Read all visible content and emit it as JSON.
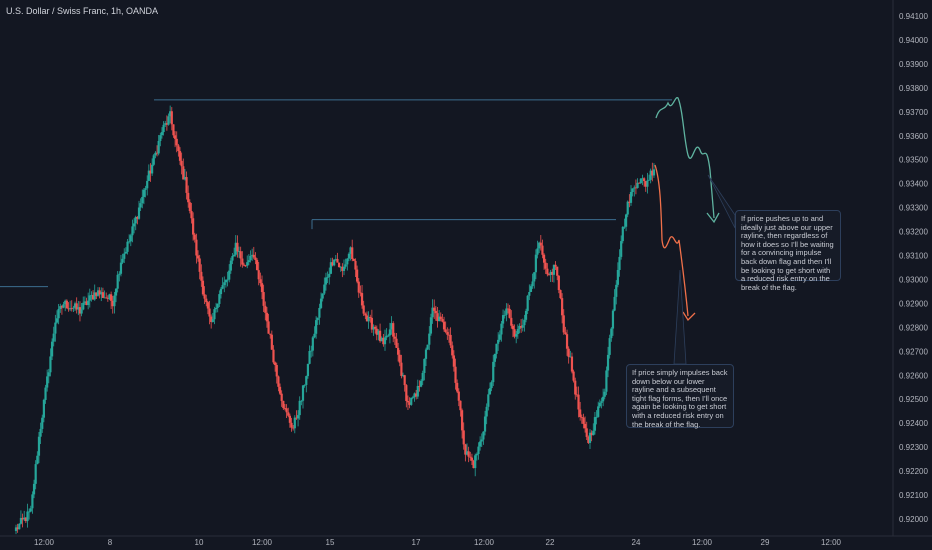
{
  "header": {
    "symbol_title": "U.S. Dollar / Swiss Franc, 1h, OANDA"
  },
  "annotations": {
    "note_upper": "If price pushes up to and ideally just above our upper rayline, then regardless of how it does so I'll be waiting for a convincing impulse back down flag and then I'll be looking to get short with a reduced risk entry on the break of the flag.",
    "note_lower": "If price simply impulses back down below our lower rayline and a subsequent tight flag forms, then I'll once again be looking to get short with a reduced risk entry on the break of the flag."
  },
  "colors": {
    "background": "#131722",
    "bull": "#26a69a",
    "bear": "#ef5350",
    "rayline": "#3c6e8f",
    "scenario_up": "#5fb3a0",
    "scenario_down": "#f0704a",
    "axis_text": "#b2b5be"
  },
  "chart_data": {
    "type": "candlestick",
    "instrument": "USDCHF",
    "timeframe": "1h",
    "ylim": [
      0.9195,
      0.9415
    ],
    "y_ticks": [
      "0.94100",
      "0.94000",
      "0.93900",
      "0.93800",
      "0.93700",
      "0.93600",
      "0.93500",
      "0.93400",
      "0.93300",
      "0.93200",
      "0.93100",
      "0.93000",
      "0.92900",
      "0.92800",
      "0.92700",
      "0.92600",
      "0.92500",
      "0.92400",
      "0.92300",
      "0.92200",
      "0.92100",
      "0.92000"
    ],
    "x_ticks": [
      "12:00",
      "8",
      "10",
      "12:00",
      "15",
      "17",
      "12:00",
      "22",
      "24",
      "12:00",
      "29",
      "12:00"
    ],
    "price_path": [
      [
        0,
        0.9195
      ],
      [
        2,
        0.9203
      ],
      [
        3,
        0.9234
      ],
      [
        4,
        0.9258
      ],
      [
        5,
        0.9283
      ],
      [
        6,
        0.929
      ],
      [
        8,
        0.9287
      ],
      [
        10,
        0.9295
      ],
      [
        12,
        0.9291
      ],
      [
        13,
        0.9308
      ],
      [
        14,
        0.9316
      ],
      [
        16,
        0.9339
      ],
      [
        17,
        0.935
      ],
      [
        18,
        0.9362
      ],
      [
        19,
        0.9368
      ],
      [
        20,
        0.9352
      ],
      [
        21,
        0.9338
      ],
      [
        22,
        0.9315
      ],
      [
        23,
        0.9296
      ],
      [
        24,
        0.928
      ],
      [
        25,
        0.9295
      ],
      [
        26,
        0.93
      ],
      [
        27,
        0.9315
      ],
      [
        28,
        0.9305
      ],
      [
        29,
        0.9312
      ],
      [
        30,
        0.9297
      ],
      [
        31,
        0.9279
      ],
      [
        32,
        0.926
      ],
      [
        33,
        0.9245
      ],
      [
        34,
        0.9238
      ],
      [
        35,
        0.925
      ],
      [
        36,
        0.9268
      ],
      [
        37,
        0.9285
      ],
      [
        38,
        0.93
      ],
      [
        39,
        0.931
      ],
      [
        40,
        0.9303
      ],
      [
        41,
        0.9313
      ],
      [
        42,
        0.9295
      ],
      [
        43,
        0.9283
      ],
      [
        44,
        0.928
      ],
      [
        45,
        0.9272
      ],
      [
        46,
        0.928
      ],
      [
        47,
        0.9265
      ],
      [
        48,
        0.9248
      ],
      [
        49,
        0.9251
      ],
      [
        50,
        0.9265
      ],
      [
        51,
        0.9287
      ],
      [
        52,
        0.9282
      ],
      [
        53,
        0.9278
      ],
      [
        54,
        0.9254
      ],
      [
        55,
        0.9228
      ],
      [
        56,
        0.9223
      ],
      [
        57,
        0.9234
      ],
      [
        58,
        0.9255
      ],
      [
        59,
        0.9276
      ],
      [
        60,
        0.9288
      ],
      [
        61,
        0.9276
      ],
      [
        62,
        0.9282
      ],
      [
        63,
        0.9298
      ],
      [
        64,
        0.9315
      ],
      [
        65,
        0.93
      ],
      [
        66,
        0.9306
      ],
      [
        67,
        0.928
      ],
      [
        68,
        0.9262
      ],
      [
        69,
        0.9242
      ],
      [
        70,
        0.9233
      ],
      [
        71,
        0.9243
      ],
      [
        72,
        0.9255
      ],
      [
        73,
        0.9288
      ],
      [
        74,
        0.9317
      ],
      [
        75,
        0.9334
      ],
      [
        76,
        0.9342
      ],
      [
        77,
        0.934
      ],
      [
        78,
        0.9347
      ]
    ],
    "raylines": [
      {
        "price": 0.9297,
        "label": "left support rayline"
      },
      {
        "price": 0.9375,
        "label": "upper rayline"
      },
      {
        "price": 0.9325,
        "label": "lower rayline"
      }
    ],
    "scenarios": [
      {
        "name": "upper",
        "direction": "down"
      },
      {
        "name": "lower",
        "direction": "down"
      }
    ]
  }
}
